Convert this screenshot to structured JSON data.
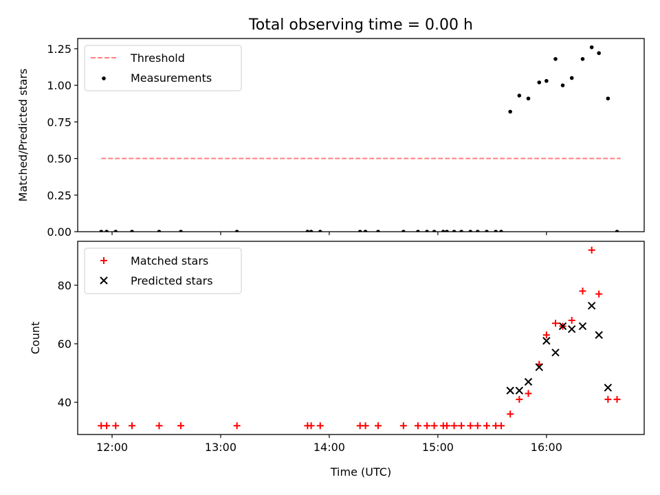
{
  "chart_data": [
    {
      "type": "scatter",
      "title": "Total observing time = 0.00 h",
      "xlabel": "",
      "ylabel": "Matched/Predicted stars",
      "xlim": [
        "11:41",
        "16:54"
      ],
      "ylim": [
        0,
        1.32
      ],
      "yticks": [
        0.0,
        0.25,
        0.5,
        0.75,
        1.0,
        1.25
      ],
      "ytick_labels": [
        "0.00",
        "0.25",
        "0.50",
        "0.75",
        "1.00",
        "1.25"
      ],
      "legend": {
        "position": "top-left",
        "entries": [
          "Threshold",
          "Measurements"
        ]
      },
      "colors": {
        "threshold": "#ff7f7f",
        "measurements": "#000000"
      },
      "threshold": {
        "name": "Threshold",
        "x": [
          "11:54",
          "16:41"
        ],
        "y": [
          0.5,
          0.5
        ]
      },
      "series": [
        {
          "name": "Measurements",
          "x": [
            "11:54",
            "11:57",
            "12:02",
            "12:11",
            "12:26",
            "12:38",
            "13:09",
            "13:48",
            "13:50",
            "13:55",
            "14:17",
            "14:20",
            "14:27",
            "14:41",
            "14:49",
            "14:54",
            "14:58",
            "15:03",
            "15:05",
            "15:09",
            "15:13",
            "15:18",
            "15:22",
            "15:27",
            "15:32",
            "15:35",
            "15:40",
            "15:45",
            "15:50",
            "15:56",
            "16:00",
            "16:05",
            "16:09",
            "16:14",
            "16:20",
            "16:25",
            "16:29",
            "16:34",
            "16:39"
          ],
          "y": [
            0,
            0,
            0,
            0,
            0,
            0,
            0,
            0,
            0,
            0,
            0,
            0,
            0,
            0,
            0,
            0,
            0,
            0,
            0,
            0,
            0,
            0,
            0,
            0,
            0,
            0,
            0.82,
            0.93,
            0.91,
            1.02,
            1.03,
            1.18,
            1.0,
            1.05,
            1.18,
            1.26,
            1.22,
            0.91,
            0
          ]
        }
      ]
    },
    {
      "type": "scatter",
      "title": "",
      "xlabel": "Time (UTC)",
      "ylabel": "Count",
      "xlim": [
        "11:41",
        "16:54"
      ],
      "ylim": [
        29,
        95
      ],
      "xticks": [
        "12:00",
        "13:00",
        "14:00",
        "15:00",
        "16:00"
      ],
      "yticks": [
        40,
        60,
        80
      ],
      "ytick_labels": [
        "40",
        "60",
        "80"
      ],
      "legend": {
        "position": "top-left",
        "entries": [
          "Matched stars",
          "Predicted stars"
        ]
      },
      "colors": {
        "matched": "#ff0000",
        "predicted": "#000000"
      },
      "series": [
        {
          "name": "Matched stars",
          "x": [
            "11:54",
            "11:57",
            "12:02",
            "12:11",
            "12:26",
            "12:38",
            "13:09",
            "13:48",
            "13:50",
            "13:55",
            "14:17",
            "14:20",
            "14:27",
            "14:41",
            "14:49",
            "14:54",
            "14:58",
            "15:03",
            "15:05",
            "15:09",
            "15:13",
            "15:18",
            "15:22",
            "15:27",
            "15:32",
            "15:35",
            "15:40",
            "15:45",
            "15:50",
            "15:56",
            "16:00",
            "16:05",
            "16:09",
            "16:14",
            "16:20",
            "16:25",
            "16:29",
            "16:34",
            "16:39"
          ],
          "y": [
            32,
            32,
            32,
            32,
            32,
            32,
            32,
            32,
            32,
            32,
            32,
            32,
            32,
            32,
            32,
            32,
            32,
            32,
            32,
            32,
            32,
            32,
            32,
            32,
            32,
            32,
            36,
            41,
            43,
            53,
            63,
            67,
            66,
            68,
            78,
            92,
            77,
            41,
            41
          ]
        },
        {
          "name": "Predicted stars",
          "x": [
            "15:40",
            "15:45",
            "15:50",
            "15:56",
            "16:00",
            "16:05",
            "16:09",
            "16:14",
            "16:20",
            "16:25",
            "16:29",
            "16:34"
          ],
          "y": [
            44,
            44,
            47,
            52,
            61,
            57,
            66,
            65,
            66,
            73,
            63,
            45
          ]
        }
      ]
    }
  ]
}
